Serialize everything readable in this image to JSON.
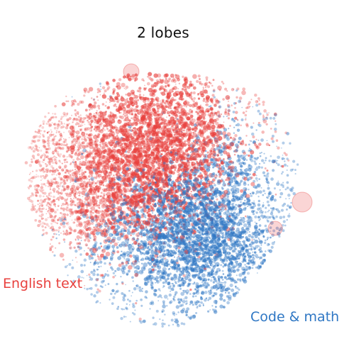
{
  "title": "2 lobes",
  "clusters": [
    {
      "key": "english",
      "label": "English text",
      "color": "#e8413e"
    },
    {
      "key": "code",
      "label": "Code & math",
      "color": "#2f77c4"
    }
  ]
}
